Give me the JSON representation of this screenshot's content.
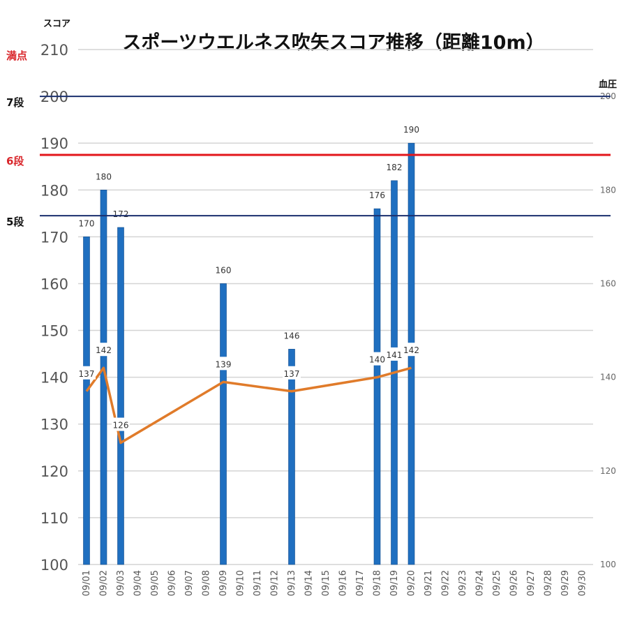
{
  "chart_data": {
    "type": "bar",
    "title": "スポーツウエルネス吹矢スコア推移（距離10m）",
    "ylabel": "スコア",
    "y2label": "血圧",
    "ylim": [
      100,
      210
    ],
    "y2lim": [
      100,
      210
    ],
    "yticks": [
      100,
      110,
      120,
      130,
      140,
      150,
      160,
      170,
      180,
      190,
      200,
      210
    ],
    "y2ticks": [
      100,
      120,
      140,
      160,
      180,
      200
    ],
    "grid": true,
    "categories": [
      "09/01",
      "09/02",
      "09/03",
      "09/04",
      "09/05",
      "09/06",
      "09/07",
      "09/08",
      "09/09",
      "09/10",
      "09/11",
      "09/12",
      "09/13",
      "09/14",
      "09/15",
      "09/16",
      "09/17",
      "09/18",
      "09/19",
      "09/20",
      "09/21",
      "09/22",
      "09/23",
      "09/24",
      "09/25",
      "09/26",
      "09/27",
      "09/28",
      "09/29",
      "09/30"
    ],
    "series": [
      {
        "kind": "bar",
        "color": "#1f6fc0",
        "values": [
          170,
          180,
          172,
          null,
          null,
          null,
          null,
          null,
          160,
          null,
          null,
          null,
          146,
          null,
          null,
          null,
          null,
          176,
          182,
          190,
          null,
          null,
          null,
          null,
          null,
          null,
          null,
          null,
          null,
          null
        ]
      },
      {
        "kind": "line",
        "axis": "y2",
        "color": "#e07b2a",
        "values": [
          137,
          142,
          126,
          null,
          null,
          null,
          null,
          null,
          139,
          null,
          null,
          null,
          137,
          null,
          null,
          null,
          null,
          140,
          141,
          142,
          null,
          null,
          null,
          null,
          null,
          null,
          null,
          null,
          null,
          null
        ]
      }
    ],
    "reference_lines": [
      {
        "label": "満点",
        "value": 210,
        "color": "#d9262b",
        "label_color": "#d9262b",
        "drawn": false
      },
      {
        "label": "7段",
        "value": 200,
        "color": "#1a2f6e",
        "label_color": "#111111",
        "drawn": true
      },
      {
        "label": "6段",
        "value": 187.5,
        "color": "#e3161b",
        "label_color": "#d9262b",
        "drawn": true
      },
      {
        "label": "5段",
        "value": 174.5,
        "color": "#1a2f6e",
        "label_color": "#111111",
        "drawn": true
      }
    ]
  }
}
